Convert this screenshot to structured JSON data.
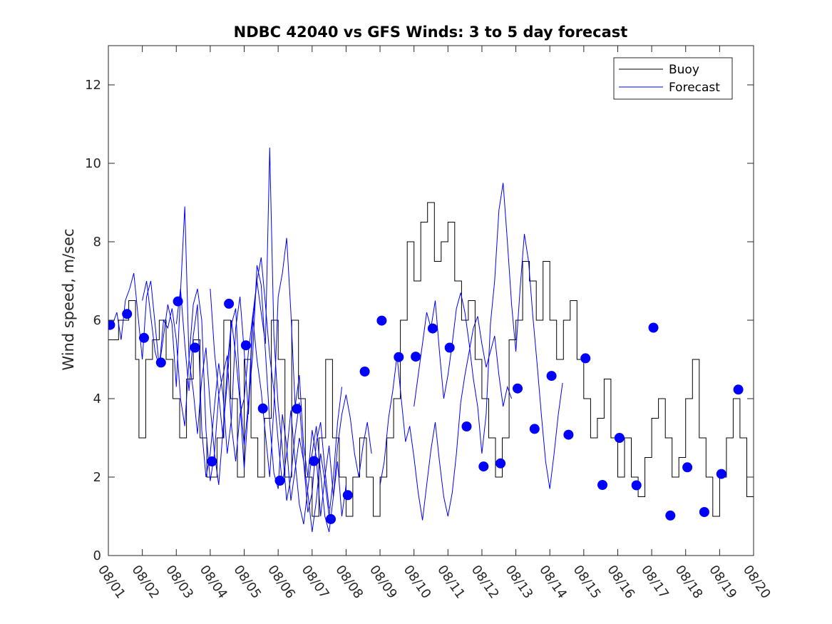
{
  "chart_data": {
    "type": "line",
    "title": "NDBC 42040 vs GFS Winds: 3 to 5 day forecast",
    "xlabel": "",
    "ylabel": "Wind speed, m/sec",
    "ylim": [
      0,
      13
    ],
    "yticks": [
      0,
      2,
      4,
      6,
      8,
      10,
      12
    ],
    "x_tick_labels": [
      "08/01",
      "08/02",
      "08/03",
      "08/04",
      "08/05",
      "08/06",
      "08/07",
      "08/08",
      "08/09",
      "08/10",
      "08/11",
      "08/12",
      "08/13",
      "08/14",
      "08/15",
      "08/16",
      "08/17",
      "08/18",
      "08/19",
      "08/20"
    ],
    "xlim_days": [
      0,
      19
    ],
    "legend": {
      "position": "top-right",
      "entries": [
        {
          "name": "Buoy",
          "color": "#000000"
        },
        {
          "name": "Forecast",
          "color": "#0000ff"
        }
      ]
    },
    "series": [
      {
        "name": "Buoy",
        "style": "step",
        "color": "#000000",
        "day_values": [
          [
            0.0,
            5.5
          ],
          [
            0.3,
            6
          ],
          [
            0.6,
            6.5
          ],
          [
            0.8,
            5
          ],
          [
            0.9,
            3
          ],
          [
            1.1,
            5
          ],
          [
            1.3,
            5.5
          ],
          [
            1.5,
            6
          ],
          [
            1.7,
            5
          ],
          [
            1.9,
            4
          ],
          [
            2.1,
            3
          ],
          [
            2.3,
            4.5
          ],
          [
            2.5,
            5.5
          ],
          [
            2.7,
            3
          ],
          [
            2.9,
            2
          ],
          [
            3.2,
            3
          ],
          [
            3.4,
            6
          ],
          [
            3.6,
            4
          ],
          [
            3.8,
            2
          ],
          [
            4.0,
            5
          ],
          [
            4.2,
            3
          ],
          [
            4.4,
            2
          ],
          [
            4.6,
            3.5
          ],
          [
            4.8,
            6
          ],
          [
            5.0,
            5
          ],
          [
            5.2,
            2
          ],
          [
            5.4,
            6
          ],
          [
            5.6,
            4
          ],
          [
            5.8,
            2
          ],
          [
            6.0,
            1
          ],
          [
            6.2,
            3
          ],
          [
            6.4,
            5
          ],
          [
            6.6,
            3
          ],
          [
            6.8,
            2
          ],
          [
            7.0,
            1
          ],
          [
            7.2,
            2
          ],
          [
            7.4,
            3
          ],
          [
            7.6,
            2
          ],
          [
            7.8,
            1
          ],
          [
            8.0,
            2
          ],
          [
            8.2,
            3
          ],
          [
            8.4,
            4
          ],
          [
            8.6,
            6
          ],
          [
            8.8,
            8
          ],
          [
            9.0,
            7
          ],
          [
            9.2,
            8.5
          ],
          [
            9.4,
            9
          ],
          [
            9.6,
            7.5
          ],
          [
            9.8,
            8
          ],
          [
            10.0,
            8.5
          ],
          [
            10.2,
            7
          ],
          [
            10.4,
            6
          ],
          [
            10.6,
            6.5
          ],
          [
            10.8,
            5
          ],
          [
            11.0,
            4
          ],
          [
            11.2,
            3
          ],
          [
            11.4,
            2
          ],
          [
            11.6,
            3
          ],
          [
            11.8,
            5.5
          ],
          [
            12.0,
            6
          ],
          [
            12.2,
            7.5
          ],
          [
            12.4,
            7
          ],
          [
            12.6,
            6
          ],
          [
            12.8,
            7.5
          ],
          [
            13.0,
            6
          ],
          [
            13.2,
            5
          ],
          [
            13.4,
            6
          ],
          [
            13.6,
            6.5
          ],
          [
            13.8,
            5
          ],
          [
            14.0,
            4
          ],
          [
            14.2,
            3
          ],
          [
            14.4,
            3.5
          ],
          [
            14.6,
            4.5
          ],
          [
            14.8,
            3
          ],
          [
            15.0,
            2
          ],
          [
            15.2,
            3
          ],
          [
            15.4,
            2
          ],
          [
            15.6,
            1.5
          ],
          [
            15.8,
            2.5
          ],
          [
            16.0,
            3.5
          ],
          [
            16.2,
            4
          ],
          [
            16.4,
            3
          ],
          [
            16.6,
            2
          ],
          [
            16.8,
            2.5
          ],
          [
            17.0,
            4
          ],
          [
            17.2,
            5
          ],
          [
            17.4,
            3
          ],
          [
            17.6,
            2
          ],
          [
            17.8,
            1
          ],
          [
            18.0,
            2
          ],
          [
            18.2,
            3
          ],
          [
            18.4,
            4
          ],
          [
            18.6,
            3
          ],
          [
            18.8,
            1.5
          ],
          [
            19.0,
            3
          ]
        ]
      },
      {
        "name": "Forecast",
        "style": "line",
        "color": "#0000ff",
        "runs": [
          {
            "start_day": 0.0,
            "values": [
              5.8,
              5.9,
              6.2,
              5.5,
              6.5,
              6.8,
              7.2,
              6.1,
              5.0,
              6.6,
              7.0,
              5.9,
              4.8,
              6.0,
              5.8,
              6.3,
              5.5,
              4.0,
              3.3,
              5.0,
              6.4,
              6.8,
              6.0,
              3.2,
              1.9,
              2.6,
              4.1,
              4.6,
              5.1,
              3.3,
              2.4,
              3.6,
              4.0,
              5.2,
              6.1,
              5.0,
              4.2,
              3.1,
              2.0,
              3.8,
              6.6,
              7.2,
              8.1,
              6.2,
              3.8,
              4.6,
              2.8,
              2.0,
              3.2,
              2.5,
              1.0,
              2.0,
              2.8,
              1.5,
              2.4,
              1.0,
              1.8
            ]
          },
          {
            "start_day": 1.0,
            "values": [
              6.5,
              7.0,
              6.1,
              5.2,
              4.8,
              5.6,
              6.4,
              5.9,
              4.3,
              6.7,
              8.9,
              5.0,
              4.2,
              3.1,
              4.5,
              5.3,
              3.8,
              2.6,
              1.8,
              3.2,
              4.4,
              5.9,
              6.3,
              4.1,
              2.8,
              3.9,
              5.1,
              7.4,
              6.9,
              5.2,
              3.4,
              2.1,
              1.7,
              3.6,
              2.8,
              1.4,
              2.2,
              3.0,
              2.4,
              1.1,
              1.6,
              2.9,
              3.4,
              2.2,
              1.2
            ]
          },
          {
            "start_day": 2.0,
            "values": [
              5.9,
              6.8,
              5.4,
              4.2,
              5.6,
              6.4,
              3.2,
              2.0,
              2.6,
              3.8,
              4.9,
              4.1,
              2.6,
              3.5,
              5.8,
              6.6,
              5.2,
              3.6,
              5.9,
              7.0,
              6.2,
              5.4,
              10.4,
              5.6,
              3.8,
              2.7,
              1.4,
              2.0,
              3.1,
              3.9,
              2.4,
              1.6,
              0.6,
              1.4,
              2.6,
              1.9,
              1.0,
              2.0,
              3.4,
              4.3
            ]
          },
          {
            "start_day": 3.0,
            "values": [
              6.8,
              5.2,
              4.1,
              3.0,
              4.8,
              6.0,
              5.1,
              3.9,
              2.2,
              3.8,
              6.1,
              7.0,
              7.6,
              6.4,
              5.1,
              4.2,
              2.9,
              1.8,
              2.6,
              3.7,
              2.4,
              1.3,
              0.8,
              1.7,
              2.6,
              3.3,
              2.1,
              1.0,
              0.6,
              1.5,
              2.8,
              3.6,
              4.1,
              3.5,
              2.6,
              2.0,
              2.8,
              3.4,
              2.6
            ]
          },
          {
            "start_day": 8.0,
            "values": [
              1.8,
              2.4,
              3.5,
              4.2,
              5.1,
              4.0,
              2.9,
              3.3,
              2.5,
              1.6,
              0.9,
              1.8,
              2.7,
              3.4,
              2.4,
              1.5,
              1.0,
              1.6,
              2.6,
              3.9,
              4.6,
              5.2,
              5.8,
              6.1,
              5.4,
              4.8,
              5.2,
              5.6,
              4.6,
              3.8,
              4.3,
              4.0
            ]
          },
          {
            "start_day": 9.0,
            "values": [
              3.8,
              4.6,
              5.4,
              6.2,
              5.8,
              6.5,
              5.2,
              4.0,
              4.6,
              5.4,
              6.3,
              6.7,
              6.2,
              5.4,
              4.5,
              3.8,
              2.6,
              3.6,
              5.9,
              7.0,
              8.8,
              9.5,
              8.0,
              6.4,
              5.2,
              6.8,
              8.2,
              7.5,
              6.1,
              4.9,
              3.6,
              2.4,
              1.7,
              2.6,
              3.6,
              4.4
            ]
          }
        ],
        "markers": [
          [
            0.05,
            5.88
          ],
          [
            0.55,
            6.16
          ],
          [
            1.05,
            5.55
          ],
          [
            1.55,
            4.92
          ],
          [
            2.05,
            6.48
          ],
          [
            2.55,
            5.3
          ],
          [
            3.05,
            2.4
          ],
          [
            3.55,
            6.42
          ],
          [
            4.05,
            5.36
          ],
          [
            4.55,
            3.75
          ],
          [
            5.05,
            1.91
          ],
          [
            5.55,
            3.74
          ],
          [
            6.05,
            2.41
          ],
          [
            6.55,
            0.93
          ],
          [
            7.05,
            1.54
          ],
          [
            7.55,
            4.69
          ],
          [
            8.05,
            5.99
          ],
          [
            8.55,
            5.06
          ],
          [
            9.05,
            5.07
          ],
          [
            9.55,
            5.79
          ],
          [
            10.05,
            5.3
          ],
          [
            10.55,
            3.29
          ],
          [
            11.05,
            2.27
          ],
          [
            11.55,
            2.35
          ],
          [
            12.05,
            4.26
          ],
          [
            12.55,
            3.23
          ],
          [
            13.05,
            4.58
          ],
          [
            13.55,
            3.08
          ],
          [
            14.05,
            5.03
          ],
          [
            14.55,
            1.8
          ],
          [
            15.05,
            3.0
          ],
          [
            15.55,
            1.79
          ],
          [
            16.05,
            5.81
          ],
          [
            16.55,
            1.02
          ],
          [
            17.05,
            2.25
          ],
          [
            17.55,
            1.11
          ],
          [
            18.05,
            2.08
          ],
          [
            18.55,
            4.23
          ]
        ]
      }
    ]
  }
}
